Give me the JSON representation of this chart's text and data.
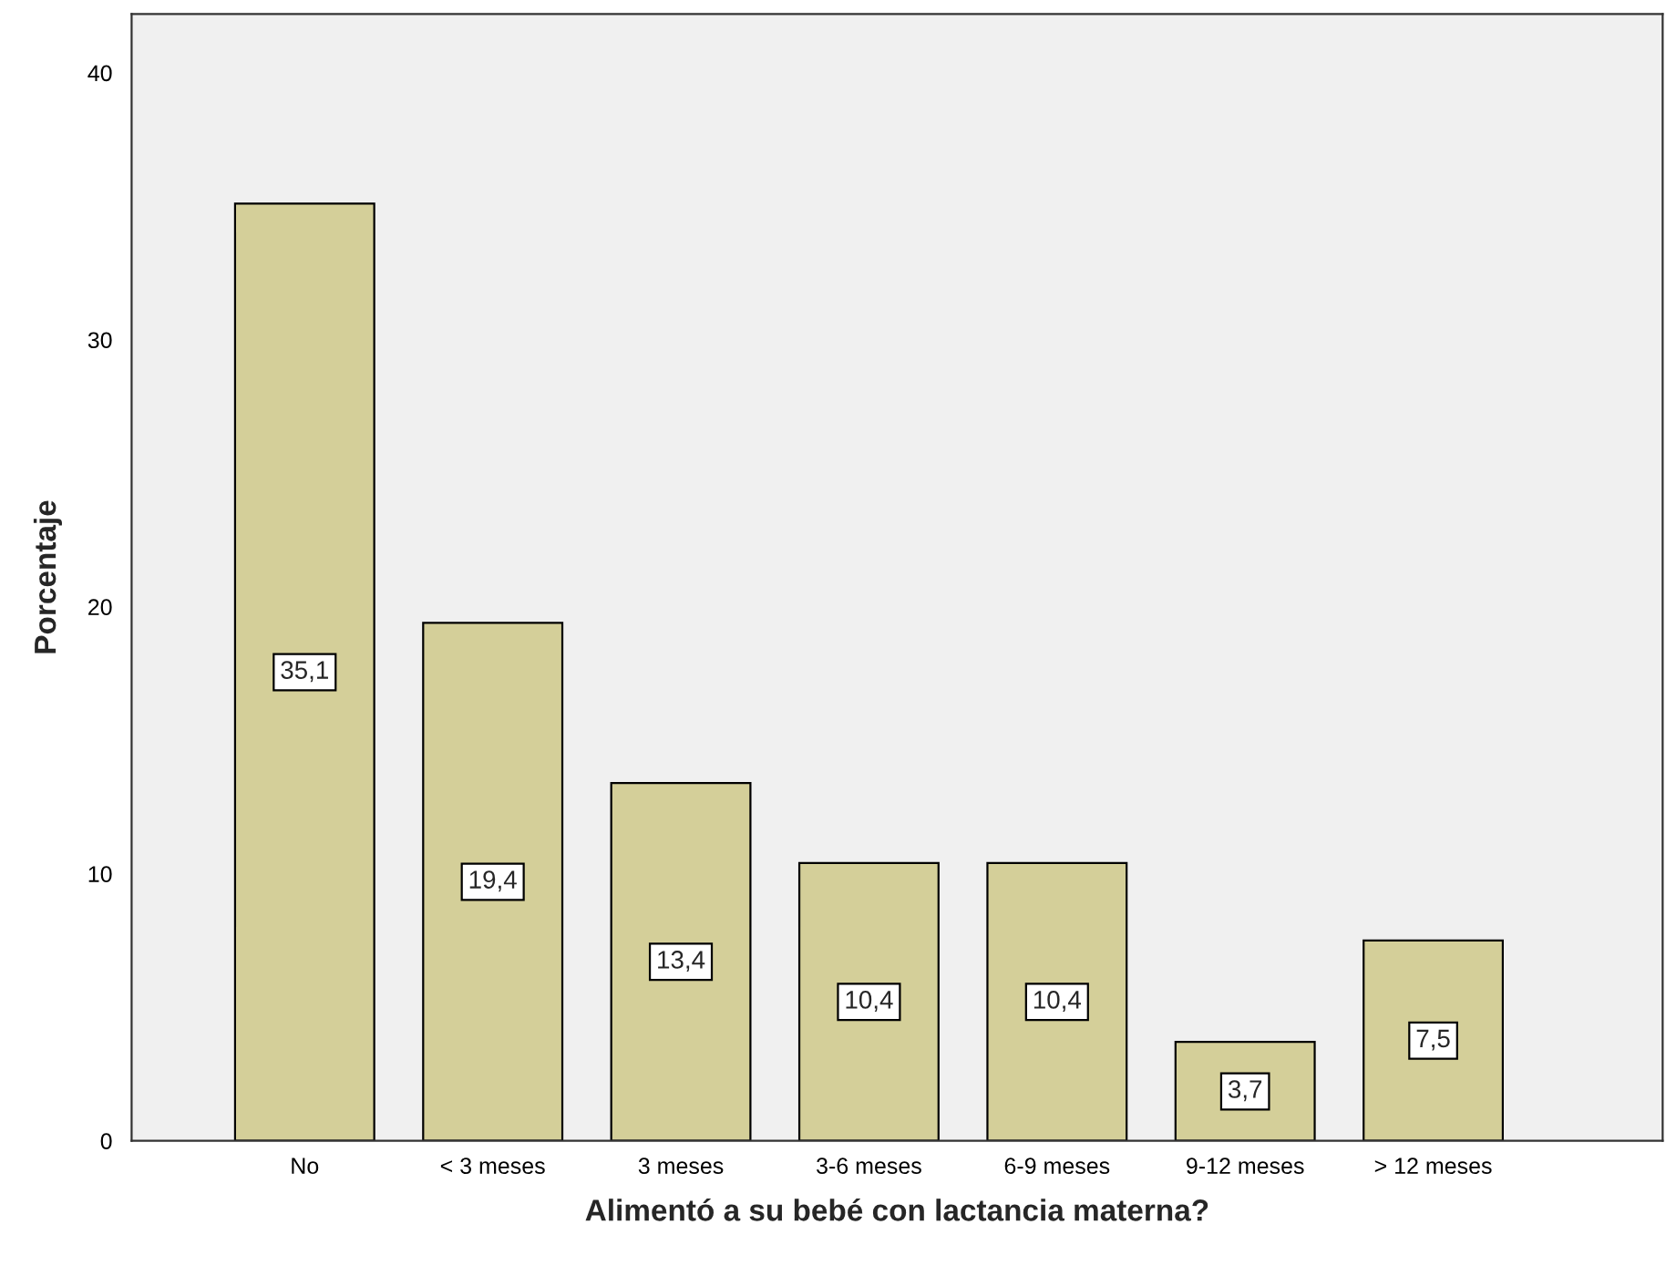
{
  "chart_data": {
    "type": "bar",
    "xlabel": "Alimentó a su bebé con lactancia materna?",
    "ylabel": "Porcentaje",
    "categories": [
      "No",
      "< 3 meses",
      "3 meses",
      "3-6 meses",
      "6-9 meses",
      "9-12 meses",
      "> 12 meses"
    ],
    "values": [
      35.1,
      19.4,
      13.4,
      10.4,
      10.4,
      3.7,
      7.5
    ],
    "value_labels": [
      "35,1",
      "19,4",
      "13,4",
      "10,4",
      "10,4",
      "3,7",
      "7,5"
    ],
    "color": "#d4cf99",
    "ylim": [
      0,
      42.2
    ],
    "yticks": [
      0,
      10,
      20,
      30,
      40
    ],
    "grid": false,
    "legend": false
  }
}
